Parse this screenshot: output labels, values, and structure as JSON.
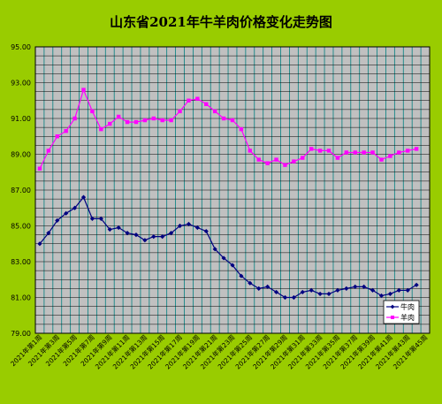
{
  "chart_data": {
    "type": "line",
    "title": "山东省2021年牛羊肉价格变化走势图",
    "ylim": [
      79,
      95
    ],
    "yticks": [
      "95.00",
      "93.00",
      "91.00",
      "89.00",
      "87.00",
      "85.00",
      "83.00",
      "81.00",
      "79.00"
    ],
    "x": [
      "2021年第1周",
      "2021年第2周",
      "2021年第3周",
      "2021年第4周",
      "2021年第5周",
      "2021年第6周",
      "2021年第7周",
      "2021年第8周",
      "2021年第9周",
      "2021年第10周",
      "2021年第11周",
      "2021年第12周",
      "2021年第13周",
      "2021年第14周",
      "2021年第15周",
      "2021年第16周",
      "2021年第17周",
      "2021年第18周",
      "2021年第19周",
      "2021年第20周",
      "2021年第21周",
      "2021年第22周",
      "2021年第23周",
      "2021年第24周",
      "2021年第25周",
      "2021年第26周",
      "2021年第27周",
      "2021年第28周",
      "2021年第29周",
      "2021年第30周",
      "2021年第31周",
      "2021年第32周",
      "2021年第33周",
      "2021年第34周",
      "2021年第35周",
      "2021年第36周",
      "2021年第37周",
      "2021年第38周",
      "2021年第39周",
      "2021年第40周",
      "2021年第41周",
      "2021年第42周",
      "2021年第43周",
      "2021年第44周",
      "2021年第45周"
    ],
    "xtick_labels": [
      "2021年第1周",
      "2021年第3周",
      "2021年第5周",
      "2021年第7周",
      "2021年第9周",
      "2021年第11周",
      "2021年第13周",
      "2021年第15周",
      "2021年第17周",
      "2021年第19周",
      "2021年第21周",
      "2021年第23周",
      "2021年第25周",
      "2021年第27周",
      "2021年第29周",
      "2021年第31周",
      "2021年第33周",
      "2021年第35周",
      "2021年第37周",
      "2021年第39周",
      "2021年第41周",
      "2021年第43周",
      "2021年第45周"
    ],
    "series": [
      {
        "name": "牛肉",
        "color": "#000080",
        "marker": "diamond",
        "values": [
          84.0,
          84.6,
          85.3,
          85.7,
          86.0,
          86.6,
          85.4,
          85.4,
          84.8,
          84.9,
          84.6,
          84.5,
          84.2,
          84.4,
          84.4,
          84.6,
          85.0,
          85.1,
          84.9,
          84.7,
          83.7,
          83.2,
          82.8,
          82.2,
          81.8,
          81.5,
          81.6,
          81.3,
          81.0,
          81.0,
          81.3,
          81.4,
          81.2,
          81.2,
          81.4,
          81.5,
          81.6,
          81.6,
          81.4,
          81.1,
          81.2,
          81.4,
          81.4,
          81.7,
          null
        ]
      },
      {
        "name": "羊肉",
        "color": "#ff00ff",
        "marker": "square",
        "values": [
          88.2,
          89.2,
          90.0,
          90.3,
          91.0,
          92.6,
          91.4,
          90.4,
          90.7,
          91.1,
          90.8,
          90.8,
          90.9,
          91.0,
          90.9,
          90.9,
          91.4,
          92.0,
          92.1,
          91.8,
          91.4,
          91.0,
          90.9,
          90.4,
          89.2,
          88.7,
          88.5,
          88.7,
          88.4,
          88.6,
          88.8,
          89.3,
          89.2,
          89.2,
          88.8,
          89.1,
          89.1,
          89.1,
          89.1,
          88.7,
          88.9,
          89.1,
          89.2,
          89.3,
          null
        ]
      }
    ],
    "grid": true,
    "legend_position": "right"
  }
}
